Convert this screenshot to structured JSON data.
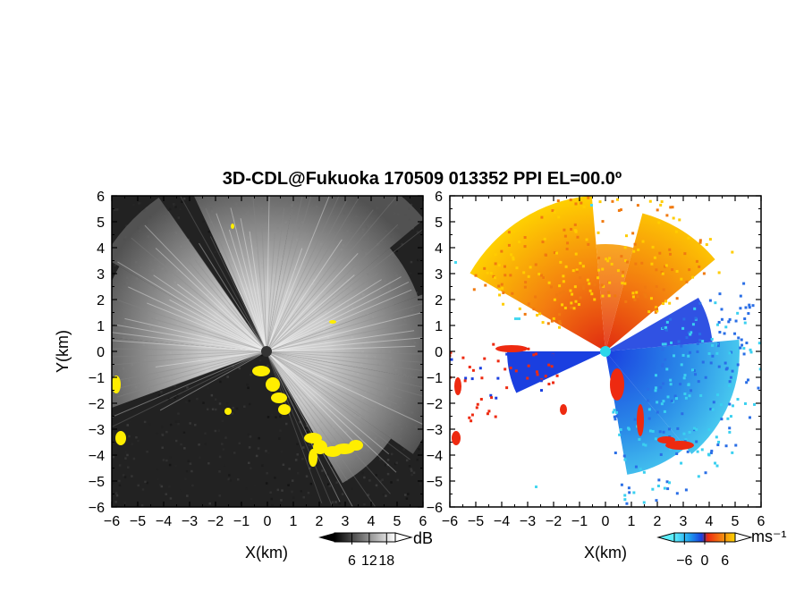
{
  "chart_data": [
    {
      "type": "heatmap",
      "title": "3D-CDL@Fukuoka 170509 013352 PPI EL=00.0º",
      "panel": "left",
      "xlabel": "X(km)",
      "ylabel": "Y(km)",
      "xlim": [
        -6,
        6
      ],
      "ylim": [
        -6,
        6
      ],
      "x_ticks": [
        -6,
        -5,
        -4,
        -3,
        -2,
        -1,
        0,
        1,
        2,
        3,
        4,
        5,
        6
      ],
      "y_ticks": [
        -6,
        -5,
        -4,
        -3,
        -2,
        -1,
        0,
        1,
        2,
        3,
        4,
        5,
        6
      ],
      "x_tick_labels": [
        "−6",
        "−5",
        "−4",
        "−3",
        "−2",
        "−1",
        "0",
        "1",
        "2",
        "3",
        "4",
        "5",
        "6"
      ],
      "y_tick_labels": [
        "−6",
        "−5",
        "−4",
        "−3",
        "−2",
        "−1",
        "0",
        "1",
        "2",
        "3",
        "4",
        "5",
        "6"
      ],
      "colorbar": {
        "unit": "dB",
        "tick_labels": [
          "6",
          "12",
          "18"
        ],
        "ticks": [
          6,
          12,
          18
        ],
        "range": [
          0,
          21
        ],
        "colormap": "grayscale"
      },
      "overlay_color": "#ffee00"
    },
    {
      "type": "heatmap",
      "panel": "right",
      "xlabel": "X(km)",
      "xlim": [
        -6,
        6
      ],
      "ylim": [
        -6,
        6
      ],
      "x_ticks": [
        -6,
        -5,
        -4,
        -3,
        -2,
        -1,
        0,
        1,
        2,
        3,
        4,
        5,
        6
      ],
      "y_ticks": [
        -6,
        -5,
        -4,
        -3,
        -2,
        -1,
        0,
        1,
        2,
        3,
        4,
        5,
        6
      ],
      "x_tick_labels": [
        "−6",
        "−5",
        "−4",
        "−3",
        "−2",
        "−1",
        "0",
        "1",
        "2",
        "3",
        "4",
        "5",
        "6"
      ],
      "y_tick_labels": [
        "−6",
        "−5",
        "−4",
        "−3",
        "−2",
        "−1",
        "0",
        "1",
        "2",
        "3",
        "4",
        "5",
        "6"
      ],
      "colorbar": {
        "unit": "ms⁻¹",
        "tick_labels": [
          "−6",
          "0",
          "6"
        ],
        "ticks": [
          -6,
          0,
          6
        ],
        "range": [
          -9,
          9
        ],
        "colormap": "cyan-blue-red-yellow"
      },
      "colors": {
        "toward": "#1a3fe0",
        "toward_far": "#46d8f0",
        "away": "#ee2a10",
        "away_far": "#ffd000",
        "center": "#2ad6ea"
      }
    }
  ]
}
